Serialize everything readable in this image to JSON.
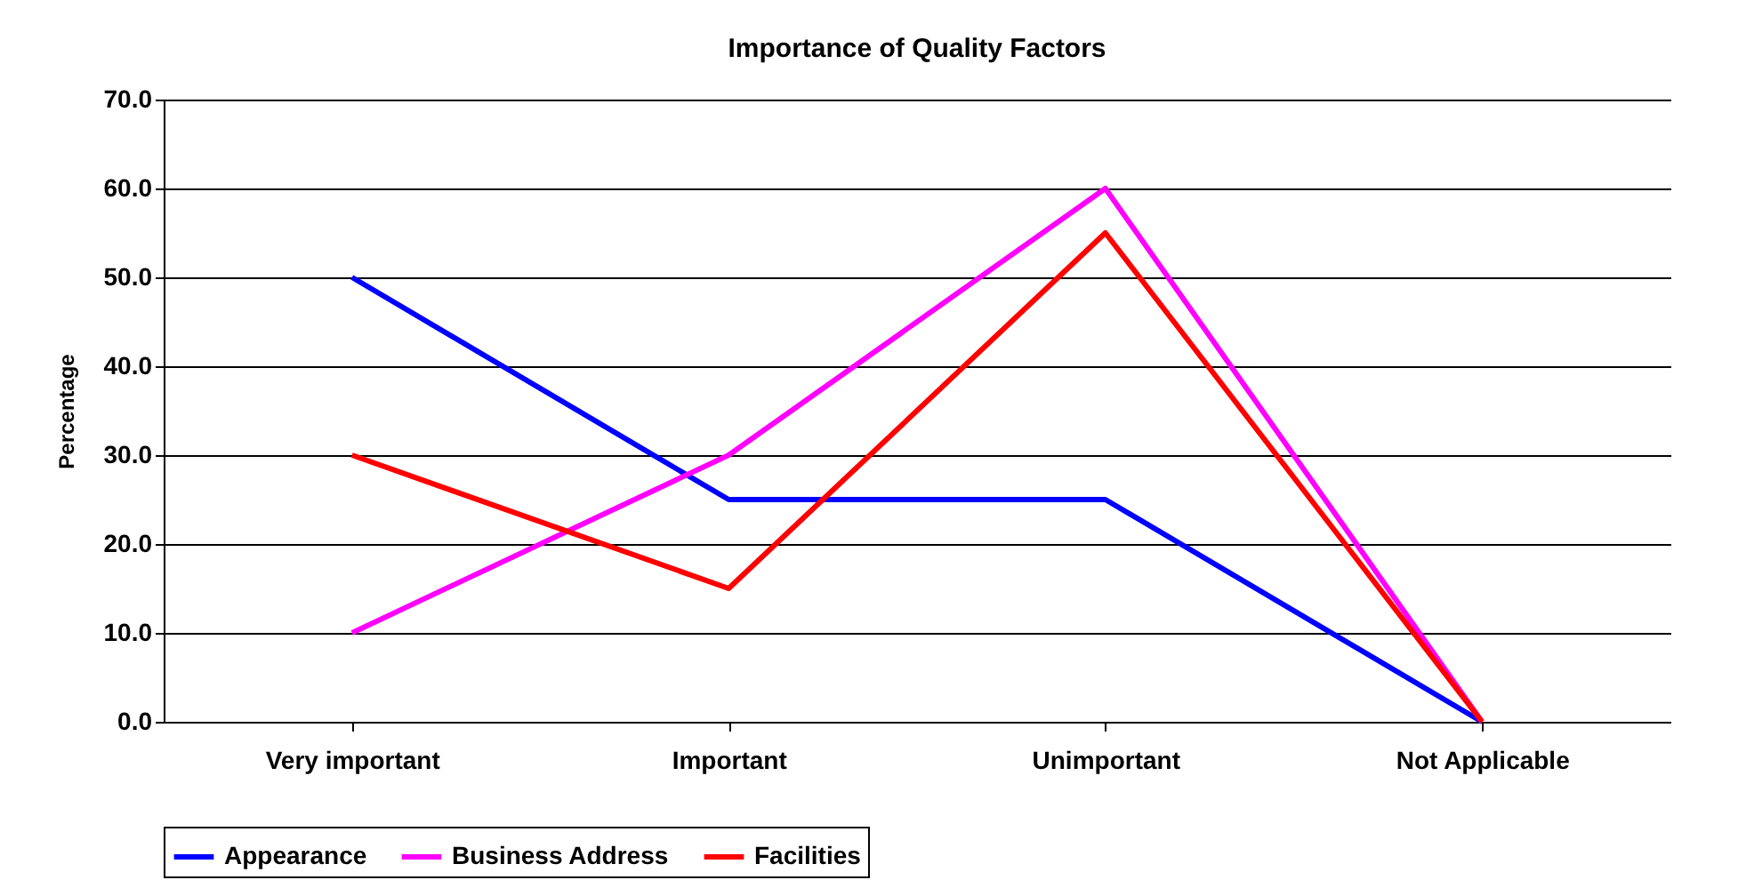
{
  "chart_data": {
    "type": "line",
    "title": "Importance of Quality Factors",
    "ylabel": "Percentage",
    "categories": [
      "Very important",
      "Important",
      "Unimportant",
      "Not Applicable"
    ],
    "series": [
      {
        "name": "Appearance",
        "color": "#0000ff",
        "values": [
          50,
          25,
          25,
          0
        ]
      },
      {
        "name": "Business Address",
        "color": "#ff00ff",
        "values": [
          10,
          30,
          60,
          0
        ]
      },
      {
        "name": "Facilities",
        "color": "#ff0000",
        "values": [
          30,
          15,
          55,
          0
        ]
      }
    ],
    "ylim": [
      0,
      70
    ],
    "yticks": [
      {
        "value": 0,
        "label": "0.0"
      },
      {
        "value": 10,
        "label": "10.0"
      },
      {
        "value": 20,
        "label": "20.0"
      },
      {
        "value": 30,
        "label": "30.0"
      },
      {
        "value": 40,
        "label": "40.0"
      },
      {
        "value": 50,
        "label": "50.0"
      },
      {
        "value": 60,
        "label": "60.0"
      },
      {
        "value": 70,
        "label": "70.0"
      }
    ],
    "grid": "y",
    "legend": "bottom",
    "line_style": "solid"
  }
}
